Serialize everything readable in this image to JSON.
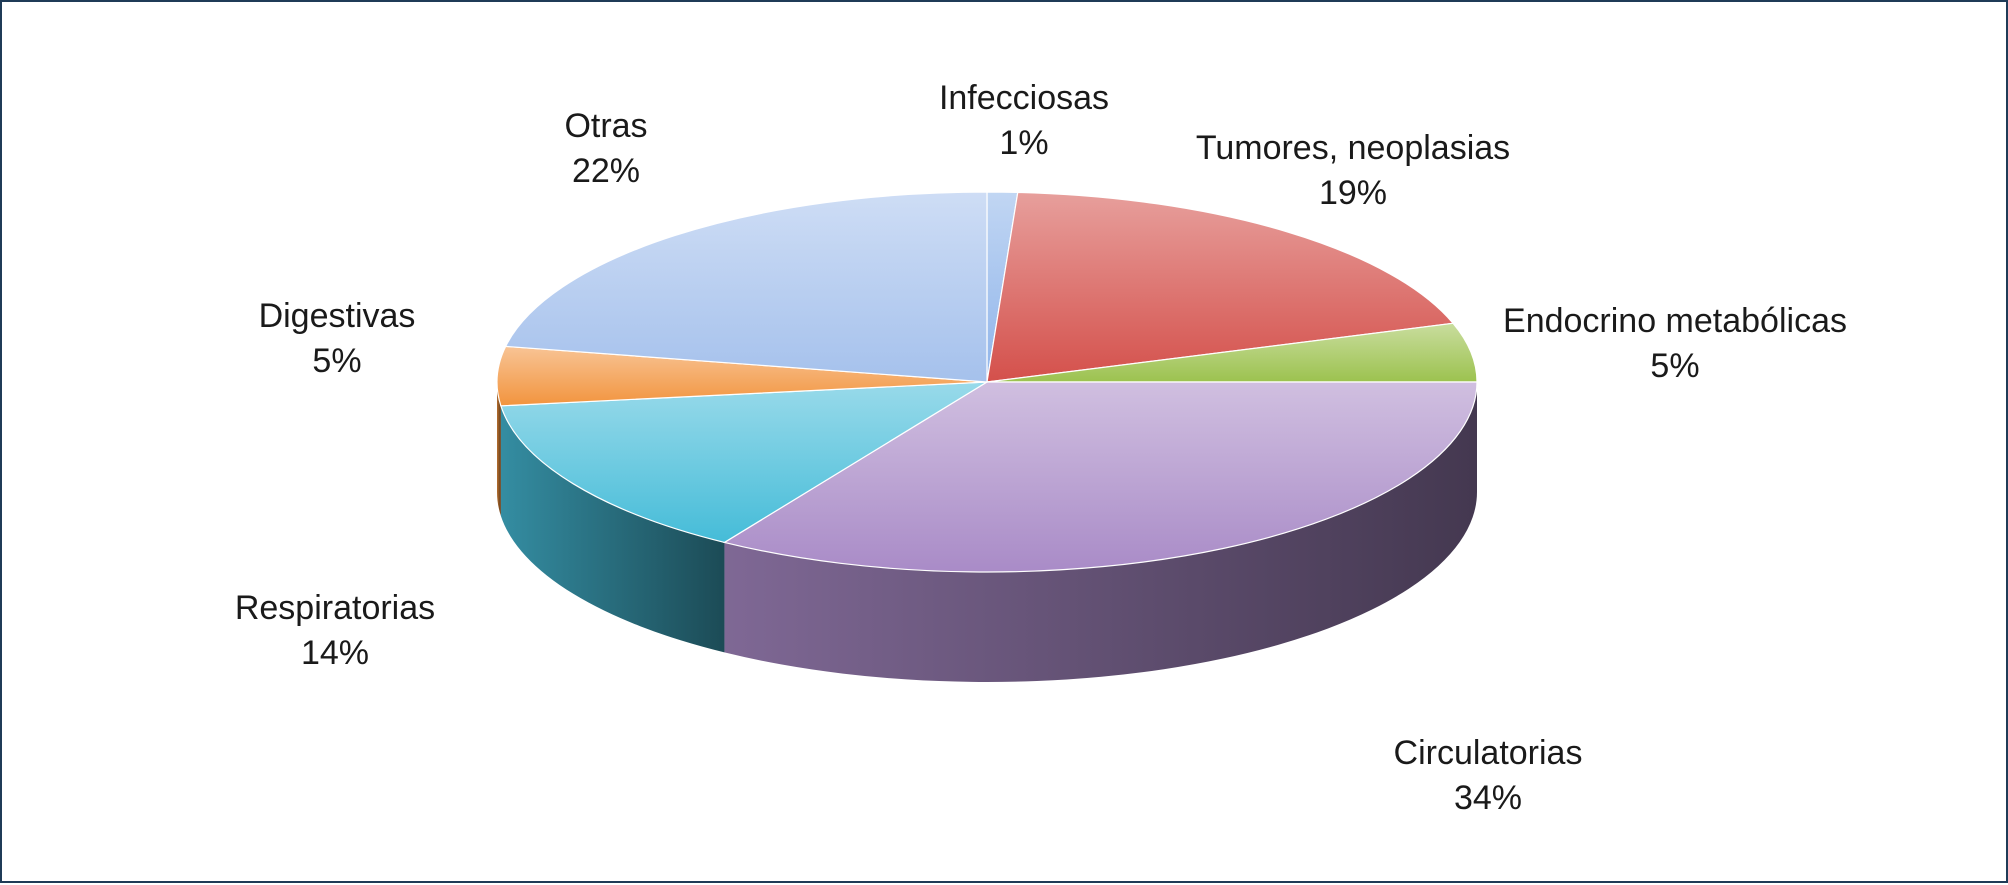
{
  "chart_data": {
    "type": "pie",
    "style": "3d",
    "title": "",
    "categories": [
      "Infecciosas",
      "Tumores, neoplasias",
      "Endocrino metabólicas",
      "Circulatorias",
      "Respiratorias",
      "Digestivas",
      "Otras"
    ],
    "values": [
      1,
      19,
      5,
      34,
      14,
      5,
      22
    ],
    "value_labels": [
      "1%",
      "19%",
      "5%",
      "34%",
      "14%",
      "5%",
      "22%"
    ],
    "unit": "%",
    "colors": [
      "#8fb4ea",
      "#d4504b",
      "#9cc24f",
      "#a98bc7",
      "#45bcd8",
      "#f2943e",
      "#a5c1ec"
    ],
    "legend": "none"
  }
}
